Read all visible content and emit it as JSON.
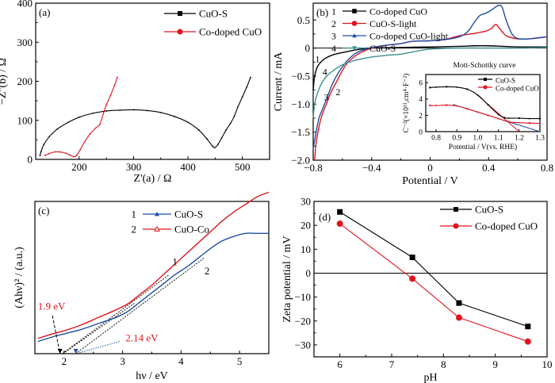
{
  "chart_data": [
    {
      "id": "a",
      "type": "line",
      "panel_label": "(a)",
      "title": "",
      "xlabel": "Z'(a) / Ω",
      "ylabel": "−Z''(b) / Ω",
      "xlim": [
        120,
        550
      ],
      "ylim": [
        0,
        400
      ],
      "xticks": [
        200,
        300,
        400,
        500
      ],
      "yticks": [
        0,
        100,
        200,
        300,
        400
      ],
      "legend_position": "top-right",
      "series": [
        {
          "name": "CuO-S",
          "color": "#000000",
          "marker": "square",
          "x": [
            128,
            130,
            135,
            145,
            160,
            180,
            200,
            225,
            250,
            275,
            300,
            325,
            350,
            375,
            400,
            420,
            435,
            445,
            449,
            455,
            462,
            470,
            478,
            485,
            492,
            500,
            508,
            515
          ],
          "y": [
            10,
            20,
            38,
            58,
            78,
            95,
            108,
            118,
            124,
            126,
            127,
            125,
            120,
            110,
            95,
            75,
            52,
            34,
            30,
            38,
            55,
            75,
            92,
            110,
            135,
            160,
            185,
            210
          ]
        },
        {
          "name": "Co-doped CuO",
          "color": "#e0141e",
          "marker": "circle",
          "x": [
            137,
            145,
            155,
            165,
            175,
            183,
            190,
            195,
            202,
            210,
            220,
            230,
            238,
            245,
            250,
            258,
            265,
            270
          ],
          "y": [
            10,
            15,
            19,
            19,
            16,
            11,
            7,
            10,
            25,
            45,
            65,
            80,
            90,
            120,
            140,
            165,
            190,
            210
          ]
        }
      ]
    },
    {
      "id": "b",
      "type": "line",
      "panel_label": "(b)",
      "title": "",
      "xlabel": "Potential / V",
      "ylabel": "Current / mA",
      "xlim": [
        -0.8,
        0.8
      ],
      "ylim": [
        -2.0,
        0.8
      ],
      "xticks": [
        -0.8,
        -0.4,
        0,
        0.4,
        0.8
      ],
      "xtick_labels": [
        "−0.8",
        "−0.4",
        "0",
        "0.4",
        "0.8"
      ],
      "yticks": [
        -2.0,
        -1.5,
        -1.0,
        -0.5,
        0,
        0.5
      ],
      "ytick_labels": [
        "−2.0",
        "−1.5",
        "−1.0",
        "−0.5",
        "0",
        "0.5"
      ],
      "legend_position": "top-left",
      "series": [
        {
          "name": "Co-doped CuO",
          "index_label": "1",
          "color": "#000000",
          "marker": "square",
          "x": [
            -0.8,
            -0.79,
            -0.77,
            -0.74,
            -0.7,
            -0.65,
            -0.58,
            -0.5,
            -0.4,
            -0.2,
            0,
            0.2,
            0.3,
            0.4,
            0.5,
            0.6,
            0.8
          ],
          "y": [
            -0.75,
            -0.5,
            -0.33,
            -0.23,
            -0.16,
            -0.11,
            -0.07,
            -0.03,
            0,
            0.01,
            0.02,
            0.03,
            0.04,
            0.04,
            0.03,
            0.02,
            0.02
          ]
        },
        {
          "name": "CuO-S-light",
          "index_label": "2",
          "color": "#e0141e",
          "marker": "circle",
          "x": [
            -0.79,
            -0.78,
            -0.76,
            -0.74,
            -0.71,
            -0.68,
            -0.64,
            -0.6,
            -0.56,
            -0.5,
            -0.44,
            -0.38,
            -0.3,
            -0.2,
            -0.12,
            0,
            0.1,
            0.2,
            0.3,
            0.38,
            0.42,
            0.45,
            0.48,
            0.52,
            0.58,
            0.64,
            0.7,
            0.8
          ],
          "y": [
            -2.0,
            -1.7,
            -1.4,
            -1.2,
            -1.0,
            -0.8,
            -0.6,
            -0.4,
            -0.25,
            -0.12,
            -0.04,
            0.01,
            0.05,
            0.08,
            0.12,
            0.13,
            0.15,
            0.22,
            0.26,
            0.3,
            0.35,
            0.42,
            0.33,
            0.22,
            0.17,
            0.16,
            0.17,
            0.2
          ]
        },
        {
          "name": "Co-doped CuO-light",
          "index_label": "3",
          "color": "#1f4fa3",
          "marker": "triangle",
          "x": [
            -0.8,
            -0.78,
            -0.76,
            -0.73,
            -0.7,
            -0.67,
            -0.63,
            -0.59,
            -0.55,
            -0.5,
            -0.44,
            -0.38,
            -0.3,
            -0.2,
            -0.12,
            0,
            0.1,
            0.2,
            0.26,
            0.3,
            0.34,
            0.38,
            0.42,
            0.46,
            0.49,
            0.52,
            0.56,
            0.6,
            0.65,
            0.7,
            0.8
          ],
          "y": [
            -1.8,
            -1.5,
            -1.25,
            -1.05,
            -0.85,
            -0.65,
            -0.45,
            -0.3,
            -0.18,
            -0.08,
            -0.02,
            0.02,
            0.05,
            0.08,
            0.12,
            0.13,
            0.15,
            0.2,
            0.3,
            0.45,
            0.58,
            0.62,
            0.68,
            0.75,
            0.74,
            0.5,
            0.25,
            0.17,
            0.16,
            0.17,
            0.2
          ]
        },
        {
          "name": "CuO-S",
          "index_label": "4",
          "color": "#3f8f8f",
          "marker": "triangle-down",
          "x": [
            -0.8,
            -0.79,
            -0.77,
            -0.74,
            -0.7,
            -0.65,
            -0.6,
            -0.55,
            -0.5,
            -0.4,
            -0.3,
            -0.2,
            -0.1,
            0,
            0.2,
            0.4,
            0.6,
            0.8
          ],
          "y": [
            -1.25,
            -1.0,
            -0.8,
            -0.62,
            -0.48,
            -0.38,
            -0.3,
            -0.25,
            -0.21,
            -0.16,
            -0.13,
            -0.11,
            -0.06,
            -0.02,
            0,
            0,
            0,
            0.01
          ]
        }
      ],
      "curve_annotations": [
        {
          "text": "1",
          "x": -0.77,
          "y": -0.25
        },
        {
          "text": "4",
          "x": -0.72,
          "y": -0.48
        },
        {
          "text": "3",
          "x": -0.71,
          "y": -0.93
        },
        {
          "text": "2",
          "x": -0.63,
          "y": -0.84
        }
      ],
      "inset": {
        "title": "Mott-Schottky curve",
        "xlabel": "Potential / V(vs. RHE)",
        "ylabel": "C⁻²(×10¹¹,cm⁴·F⁻²)",
        "xlim": [
          0.75,
          1.3
        ],
        "ylim": [
          0,
          7
        ],
        "xticks": [
          0.8,
          0.9,
          1.0,
          1.1,
          1.2,
          1.3
        ],
        "xtick_labels": [
          "0.8",
          "0.9",
          "1.0",
          "1.1",
          "1.2",
          "1.3"
        ],
        "yticks": [
          0,
          2,
          4,
          6
        ],
        "legend_position": "top-right",
        "series": [
          {
            "name": "CuO-S",
            "color": "#000000",
            "marker": "square",
            "x": [
              0.77,
              0.8,
              0.85,
              0.9,
              0.95,
              1.0,
              1.05,
              1.1,
              1.13,
              1.15,
              1.2,
              1.25,
              1.3
            ],
            "y": [
              5.4,
              5.45,
              5.5,
              5.45,
              5.2,
              4.5,
              3.3,
              2.1,
              1.7,
              1.65,
              1.65,
              1.6,
              1.6
            ]
          },
          {
            "name": "Co-doped CuO",
            "color": "#e0141e",
            "marker": "circle",
            "x": [
              0.77,
              0.8,
              0.85,
              0.9,
              0.95,
              1.0,
              1.05,
              1.1,
              1.15,
              1.2,
              1.25,
              1.3
            ],
            "y": [
              3.2,
              3.2,
              3.25,
              3.15,
              2.8,
              2.4,
              2.0,
              1.6,
              1.2,
              1.1,
              1.05,
              1.0
            ]
          }
        ],
        "fit_lines": [
          {
            "color": "#e0141e",
            "x": [
              0.98,
              1.2
            ],
            "y": [
              4.9,
              0
            ]
          },
          {
            "color": "#1f4fa3",
            "x": [
              0.88,
              1.3
            ],
            "y": [
              3.35,
              0
            ]
          }
        ]
      }
    },
    {
      "id": "c",
      "type": "line",
      "panel_label": "(c)",
      "title": "",
      "xlabel": "hν / eV",
      "ylabel": "(Ahν)² / (a.u.)",
      "xlim": [
        1.5,
        5.5
      ],
      "ylim": [
        0,
        100
      ],
      "xticks": [
        2,
        3,
        4,
        5
      ],
      "yticks": [],
      "legend_position": "top-center",
      "series": [
        {
          "name": "CuO-S",
          "index_label": "1",
          "color": "#1f4fa3",
          "marker": "triangle",
          "x": [
            1.55,
            1.8,
            2.0,
            2.3,
            2.6,
            2.9,
            3.1,
            3.3,
            3.5,
            3.7,
            3.9,
            4.1,
            4.3,
            4.5,
            4.7,
            4.9,
            5.1,
            5.3,
            5.5
          ],
          "y": [
            8,
            11,
            13,
            16,
            20,
            24,
            28,
            34,
            40,
            46,
            52,
            57,
            63,
            69,
            74,
            77,
            79,
            79,
            79
          ]
        },
        {
          "name": "CuO-Co",
          "index_label": "2",
          "color": "#e0141e",
          "marker": "triangle-open",
          "x": [
            1.55,
            1.8,
            2.0,
            2.3,
            2.6,
            2.9,
            3.1,
            3.3,
            3.5,
            3.7,
            3.9,
            4.1,
            4.3,
            4.5,
            4.7,
            4.9,
            5.1,
            5.3,
            5.5
          ],
          "y": [
            10,
            13,
            15,
            19,
            24,
            29,
            33,
            39,
            45,
            52,
            59,
            66,
            73,
            80,
            87,
            93,
            98,
            103,
            106
          ]
        }
      ],
      "tangent_lines": [
        {
          "color": "#000000",
          "style": "dashed",
          "x": [
            1.97,
            3.8
          ],
          "y": [
            0,
            52
          ]
        },
        {
          "color": "#000000",
          "style": "dashed",
          "x": [
            2.2,
            4.4
          ],
          "y": [
            0,
            63
          ]
        },
        {
          "color": "#000000",
          "style": "dashed",
          "x": [
            1.98,
            3.2
          ],
          "y": [
            0,
            33
          ]
        }
      ],
      "annotations": [
        {
          "text": "1.9 eV",
          "color": "#e0141e",
          "x": 1.55,
          "y": 29
        },
        {
          "text": "2.14 eV",
          "color": "#e0141e",
          "x": 3.05,
          "y": 8
        },
        {
          "text": "1",
          "color": "#000000",
          "x": 3.85,
          "y": 58
        },
        {
          "text": "2",
          "color": "#000000",
          "x": 4.4,
          "y": 52
        }
      ],
      "arrows": [
        {
          "color": "#000000",
          "style": "dashed",
          "from": [
            1.8,
            25
          ],
          "to": [
            1.93,
            0
          ]
        },
        {
          "color": "#1f4fa3",
          "style": "dotted",
          "from": [
            2.95,
            8
          ],
          "to": [
            2.2,
            0
          ]
        }
      ]
    },
    {
      "id": "d",
      "type": "line",
      "panel_label": "(d)",
      "title": "",
      "xlabel": "pH",
      "ylabel": "Zeta potential / mV",
      "xlim": [
        5.5,
        10
      ],
      "ylim": [
        -35,
        30
      ],
      "xticks": [
        6,
        7,
        8,
        9,
        10
      ],
      "yticks": [
        -30,
        -20,
        -10,
        0,
        10,
        20,
        30
      ],
      "ytick_labels": [
        "−30",
        "−20",
        "−10",
        "0",
        "10",
        "20",
        "30"
      ],
      "zero_line": true,
      "legend_position": "top-right",
      "series": [
        {
          "name": "CuO-S",
          "color": "#000000",
          "marker": "square",
          "x": [
            6.0,
            7.4,
            8.3,
            9.63
          ],
          "y": [
            25.6,
            6.6,
            -12.5,
            -22.3
          ]
        },
        {
          "name": "Co-doped CuO",
          "color": "#e0141e",
          "marker": "circle",
          "x": [
            6.0,
            7.4,
            8.3,
            9.63
          ],
          "y": [
            20.7,
            -2.3,
            -18.6,
            -28.6
          ]
        }
      ]
    }
  ]
}
